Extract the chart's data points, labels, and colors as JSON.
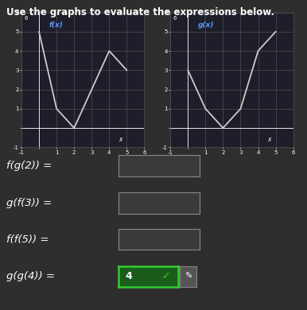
{
  "title": "Use the graphs to evaluate the expressions below.",
  "title_fontsize": 8.5,
  "background_color": "#2e2e2e",
  "text_color": "#ffffff",
  "grid_color": "#505050",
  "graph_bg": "#1e1e2a",
  "line_color": "#cccccc",
  "label_color": "#5599ff",
  "f_x": [
    0,
    1,
    2,
    3,
    4,
    5
  ],
  "f_y": [
    5,
    1,
    0,
    2,
    4,
    3
  ],
  "g_x": [
    0,
    1,
    2,
    3,
    4,
    5
  ],
  "g_y": [
    3,
    1,
    0,
    1,
    4,
    5
  ],
  "xlim": [
    -1,
    6
  ],
  "ylim": [
    -1,
    6
  ],
  "expressions": [
    "f(g(2)) =",
    "g(f(3)) =",
    "f(f(5)) ="
  ],
  "last_expression": "g(g(4)) =",
  "last_answer": "4",
  "expr_fontsize": 9.5,
  "box_facecolor": "#3a3a3a",
  "box_edgecolor": "#888888",
  "answer_box_color": "#1a5c1a",
  "answer_box_border": "#33cc33",
  "check_color": "#33cc33",
  "pencil_color": "#aaaaaa"
}
